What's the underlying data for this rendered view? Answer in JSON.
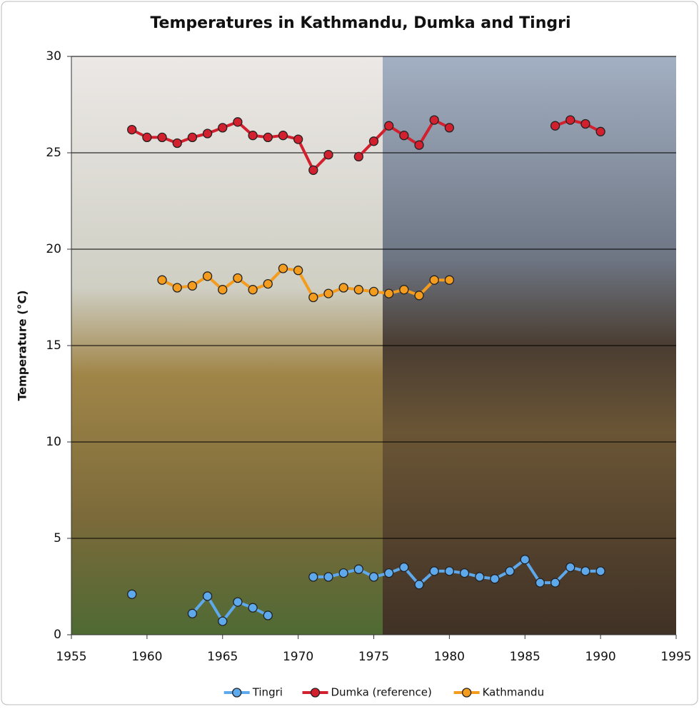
{
  "chart_data": {
    "type": "line",
    "title": "Temperatures in Kathmandu, Dumka and Tingri",
    "y_label": "Temperature (°C)",
    "x": [
      1959,
      1960,
      1961,
      1962,
      1963,
      1964,
      1965,
      1966,
      1967,
      1968,
      1969,
      1970,
      1971,
      1972,
      1973,
      1974,
      1975,
      1976,
      1977,
      1978,
      1979,
      1980,
      1981,
      1982,
      1983,
      1984,
      1985,
      1986,
      1987,
      1988,
      1989,
      1990
    ],
    "series": [
      {
        "name": "Tingri",
        "color": "#5ea8ec",
        "values": [
          2.1,
          null,
          null,
          null,
          1.1,
          2.0,
          0.7,
          1.7,
          1.4,
          1.0,
          null,
          null,
          3.0,
          3.0,
          3.2,
          3.4,
          3.0,
          3.2,
          3.5,
          2.6,
          3.3,
          3.3,
          3.2,
          3.0,
          2.9,
          3.3,
          3.9,
          2.7,
          2.7,
          3.5,
          3.3,
          3.3
        ]
      },
      {
        "name": "Dumka (reference)",
        "color": "#d2202e",
        "values": [
          26.2,
          25.8,
          25.8,
          25.5,
          25.8,
          26.0,
          26.3,
          26.6,
          25.9,
          25.8,
          25.9,
          25.7,
          24.1,
          24.9,
          null,
          24.8,
          25.6,
          26.4,
          25.9,
          25.4,
          26.7,
          26.3,
          null,
          null,
          null,
          null,
          null,
          null,
          26.4,
          26.7,
          26.5,
          26.1
        ]
      },
      {
        "name": "Kathmandu",
        "color": "#f39c1e",
        "values": [
          null,
          null,
          18.4,
          18.0,
          18.1,
          18.6,
          17.9,
          18.5,
          17.9,
          18.2,
          19.0,
          18.9,
          17.5,
          17.7,
          18.0,
          17.9,
          17.8,
          17.7,
          17.9,
          17.6,
          18.4,
          18.4,
          null,
          null,
          null,
          null,
          null,
          null,
          null,
          null,
          null,
          null
        ]
      }
    ],
    "xlim": [
      1955,
      1995
    ],
    "xticks": [
      1955,
      1960,
      1965,
      1970,
      1975,
      1980,
      1985,
      1990,
      1995
    ],
    "ylim": [
      0,
      30
    ],
    "yticks": [
      0,
      5,
      10,
      15,
      20,
      25,
      30
    ],
    "grid": true,
    "legend": "bottom"
  }
}
